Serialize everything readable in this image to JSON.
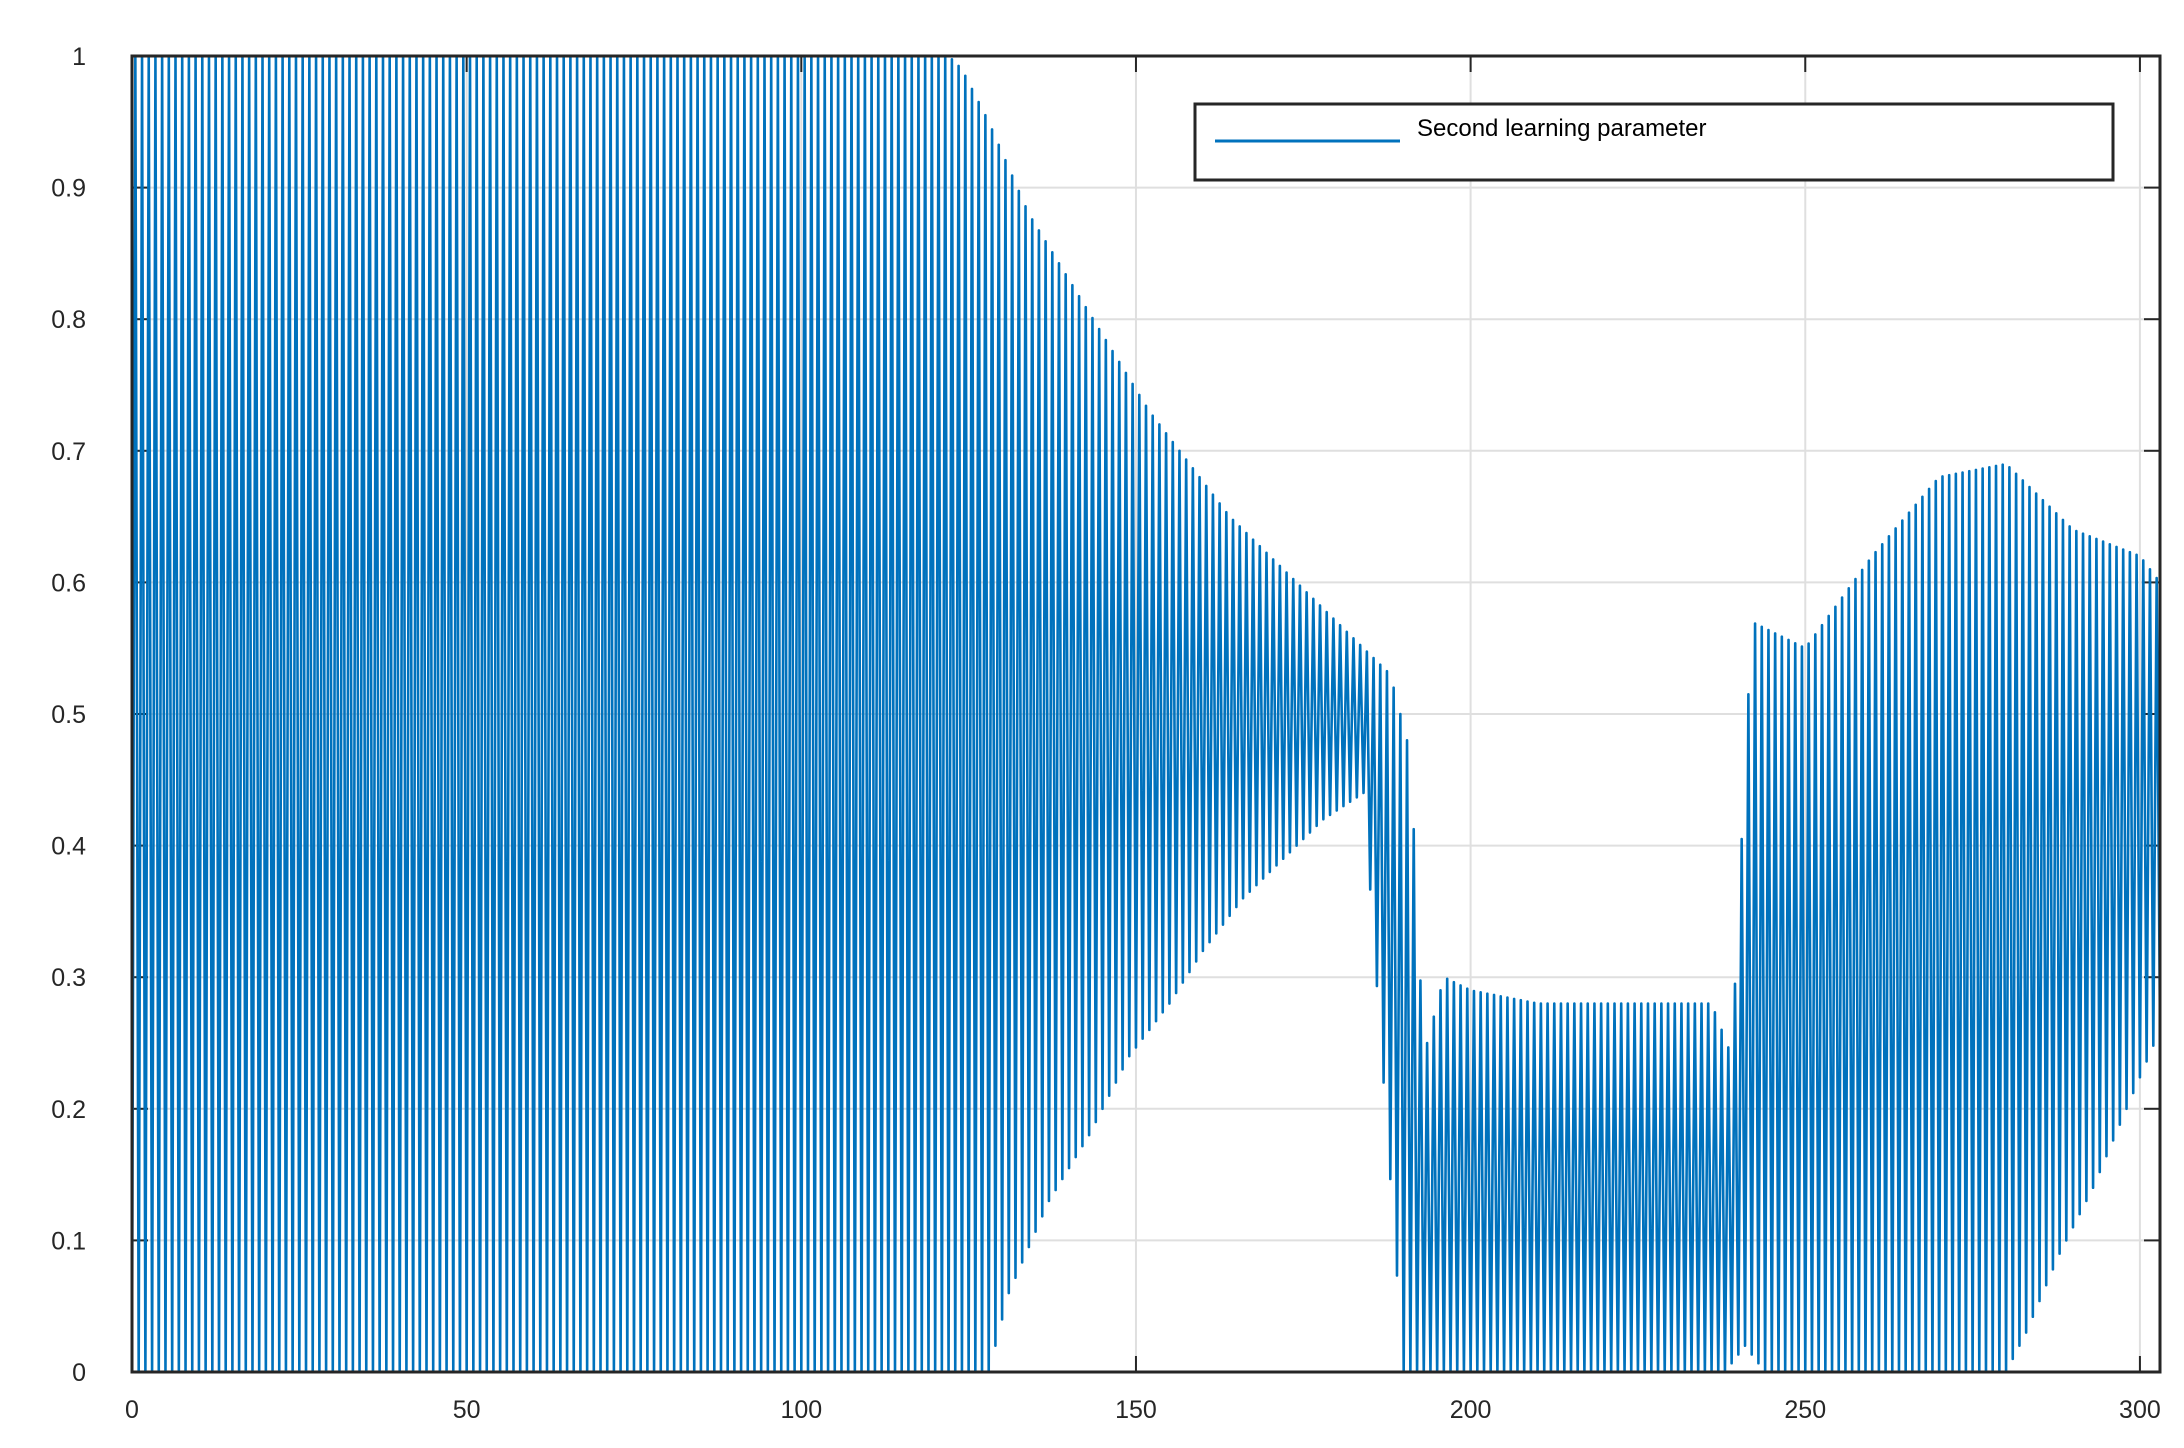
{
  "chart_data": {
    "type": "line",
    "title": "",
    "xlabel": "",
    "ylabel": "",
    "xlim": [
      0,
      303
    ],
    "ylim": [
      0,
      1
    ],
    "xticks": [
      0,
      50,
      100,
      150,
      200,
      250,
      300
    ],
    "yticks": [
      0,
      0.1,
      0.2,
      0.3,
      0.4,
      0.5,
      0.6,
      0.7,
      0.8,
      0.9,
      1
    ],
    "grid": true,
    "legend": {
      "position": "top-right",
      "entries": [
        "Second learning parameter"
      ]
    },
    "series": [
      {
        "name": "Second learning parameter",
        "color": "#0072bd",
        "sample_step": 0.5,
        "peaks": [
          {
            "t": 2,
            "v": 1.0
          },
          {
            "t": 4,
            "v": 1.0
          },
          {
            "t": 6,
            "v": 1.0
          },
          {
            "t": 8,
            "v": 1.0
          },
          {
            "t": 10,
            "v": 1.0
          },
          {
            "t": 12,
            "v": 1.0
          },
          {
            "t": 14,
            "v": 1.0
          },
          {
            "t": 16,
            "v": 1.0
          },
          {
            "t": 18,
            "v": 1.0
          },
          {
            "t": 20,
            "v": 1.0
          },
          {
            "t": 22,
            "v": 1.0
          },
          {
            "t": 24,
            "v": 1.0
          },
          {
            "t": 26,
            "v": 1.0
          },
          {
            "t": 28,
            "v": 1.0
          },
          {
            "t": 30,
            "v": 1.0
          },
          {
            "t": 40,
            "v": 1.0
          },
          {
            "t": 60,
            "v": 1.0
          },
          {
            "t": 80,
            "v": 1.0
          },
          {
            "t": 100,
            "v": 1.0
          },
          {
            "t": 122,
            "v": 1.0
          },
          {
            "t": 124,
            "v": 0.99
          },
          {
            "t": 128,
            "v": 0.95
          },
          {
            "t": 134,
            "v": 0.88
          },
          {
            "t": 140,
            "v": 0.83
          },
          {
            "t": 146,
            "v": 0.78
          },
          {
            "t": 152,
            "v": 0.73
          },
          {
            "t": 158,
            "v": 0.69
          },
          {
            "t": 164,
            "v": 0.65
          },
          {
            "t": 170,
            "v": 0.62
          },
          {
            "t": 176,
            "v": 0.59
          },
          {
            "t": 182,
            "v": 0.56
          },
          {
            "t": 188,
            "v": 0.53
          },
          {
            "t": 191,
            "v": 0.47
          },
          {
            "t": 193,
            "v": 0.24
          },
          {
            "t": 196,
            "v": 0.3
          },
          {
            "t": 200,
            "v": 0.29
          },
          {
            "t": 210,
            "v": 0.28
          },
          {
            "t": 220,
            "v": 0.28
          },
          {
            "t": 230,
            "v": 0.28
          },
          {
            "t": 236,
            "v": 0.28
          },
          {
            "t": 239,
            "v": 0.24
          },
          {
            "t": 242,
            "v": 0.57
          },
          {
            "t": 250,
            "v": 0.55
          },
          {
            "t": 260,
            "v": 0.62
          },
          {
            "t": 270,
            "v": 0.68
          },
          {
            "t": 280,
            "v": 0.69
          },
          {
            "t": 290,
            "v": 0.64
          },
          {
            "t": 300,
            "v": 0.62
          },
          {
            "t": 303,
            "v": 0.6
          }
        ],
        "troughs": [
          {
            "t": 2,
            "v": 0.0
          },
          {
            "t": 120,
            "v": 0.0
          },
          {
            "t": 128,
            "v": 0.0
          },
          {
            "t": 131,
            "v": 0.06
          },
          {
            "t": 137,
            "v": 0.13
          },
          {
            "t": 143,
            "v": 0.18
          },
          {
            "t": 149,
            "v": 0.24
          },
          {
            "t": 155,
            "v": 0.28
          },
          {
            "t": 160,
            "v": 0.32
          },
          {
            "t": 166,
            "v": 0.36
          },
          {
            "t": 172,
            "v": 0.39
          },
          {
            "t": 178,
            "v": 0.42
          },
          {
            "t": 184,
            "v": 0.44
          },
          {
            "t": 190,
            "v": 0.0
          },
          {
            "t": 200,
            "v": 0.0
          },
          {
            "t": 212,
            "v": 0.0
          },
          {
            "t": 226,
            "v": 0.0
          },
          {
            "t": 238,
            "v": 0.0
          },
          {
            "t": 241,
            "v": 0.02
          },
          {
            "t": 244,
            "v": 0.0
          },
          {
            "t": 276,
            "v": 0.0
          },
          {
            "t": 280,
            "v": 0.0
          },
          {
            "t": 283,
            "v": 0.03
          },
          {
            "t": 288,
            "v": 0.09
          },
          {
            "t": 293,
            "v": 0.14
          },
          {
            "t": 298,
            "v": 0.2
          },
          {
            "t": 303,
            "v": 0.26
          }
        ]
      }
    ]
  }
}
